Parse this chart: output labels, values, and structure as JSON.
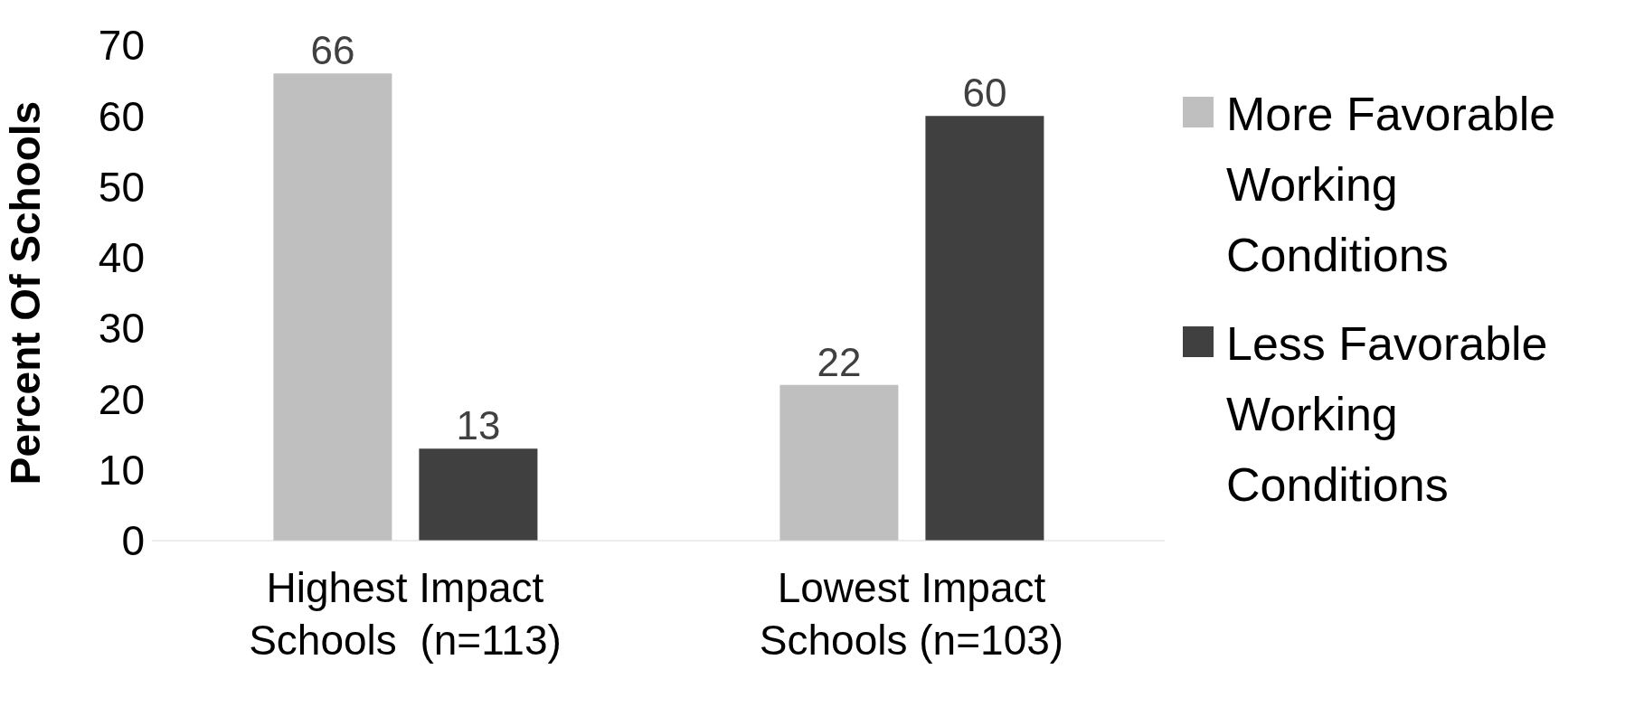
{
  "chart_data": {
    "type": "bar",
    "ylabel": "Percent Of Schools",
    "categories": [
      "Highest Impact Schools  (n=113)",
      "Lowest Impact Schools (n=103)"
    ],
    "series": [
      {
        "name": "More Favorable Working Conditions",
        "color": "#bfbfbf",
        "values": [
          66,
          22
        ]
      },
      {
        "name": "Less Favorable Working Conditions",
        "color": "#404040",
        "values": [
          13,
          60
        ]
      }
    ],
    "ylim": [
      0,
      70
    ],
    "yticks": [
      0,
      10,
      20,
      30,
      40,
      50,
      60,
      70
    ],
    "grid": false,
    "legend": "right",
    "data_labels": true
  }
}
